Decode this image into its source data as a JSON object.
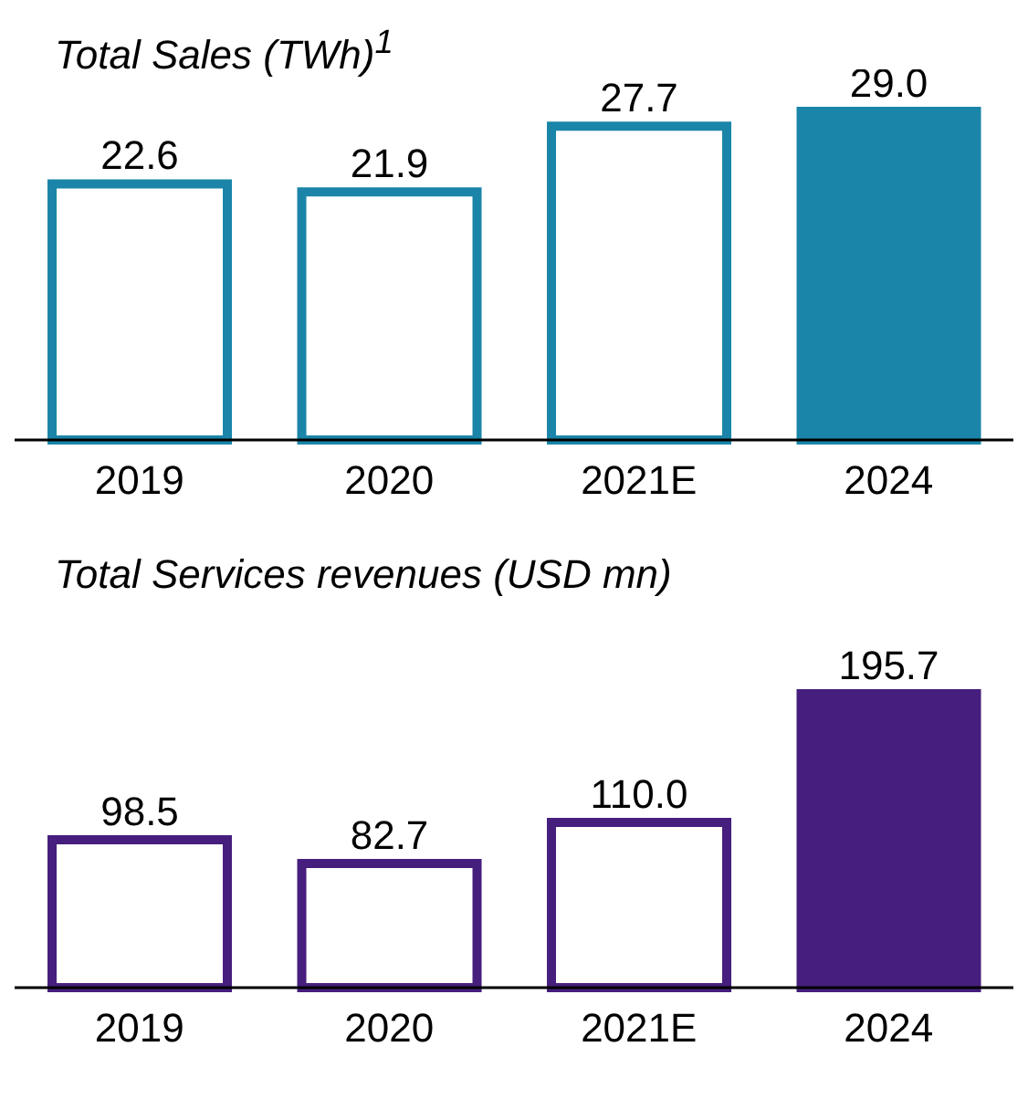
{
  "chart_data": [
    {
      "type": "bar",
      "title": "Total Sales (TWh)$^{1}$",
      "categories": [
        "2019",
        "2020",
        "2021E",
        "2024"
      ],
      "values": [
        22.6,
        21.9,
        27.7,
        29.0
      ],
      "value_labels": [
        "22.6",
        "21.9",
        "27.7",
        "29.0"
      ],
      "color": "#1a85a8",
      "colors": [
        "#ffffff",
        "#ffffff",
        "#ffffff",
        "#1a85a8"
      ]
    },
    {
      "type": "bar",
      "title": "Total Services revenues (USD mn)",
      "categories": [
        "2019",
        "2020",
        "2021E",
        "2024"
      ],
      "values": [
        98.5,
        82.7,
        110.0,
        195.7
      ],
      "value_labels": [
        "98.5",
        "82.7",
        "110.0",
        "195.7"
      ],
      "color": "#461e7d",
      "colors": [
        "#ffffff",
        "#ffffff",
        "#ffffff",
        "#461e7d"
      ]
    }
  ]
}
